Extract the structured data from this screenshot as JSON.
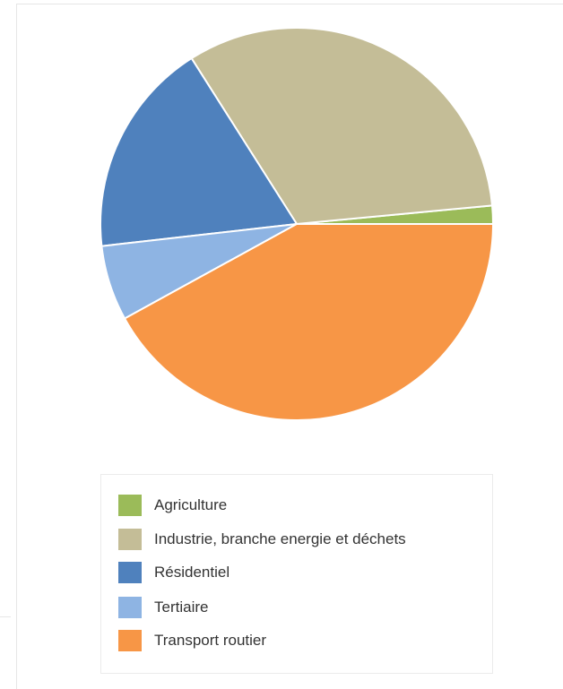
{
  "chart_data": {
    "type": "pie",
    "title": "",
    "slices": [
      {
        "label": "Agriculture",
        "value": 1.5,
        "color": "#9bbb59"
      },
      {
        "label": "Industrie, branche energie et déchets",
        "value": 32.5,
        "color": "#c4bd97"
      },
      {
        "label": "Résidentiel",
        "value": 17.8,
        "color": "#4f81bd"
      },
      {
        "label": "Tertiaire",
        "value": 6.2,
        "color": "#8eb4e3"
      },
      {
        "label": "Transport routier",
        "value": 42.0,
        "color": "#f79646"
      }
    ],
    "legend_position": "bottom",
    "start_direction": "counterclockwise-from-3-oclock"
  }
}
